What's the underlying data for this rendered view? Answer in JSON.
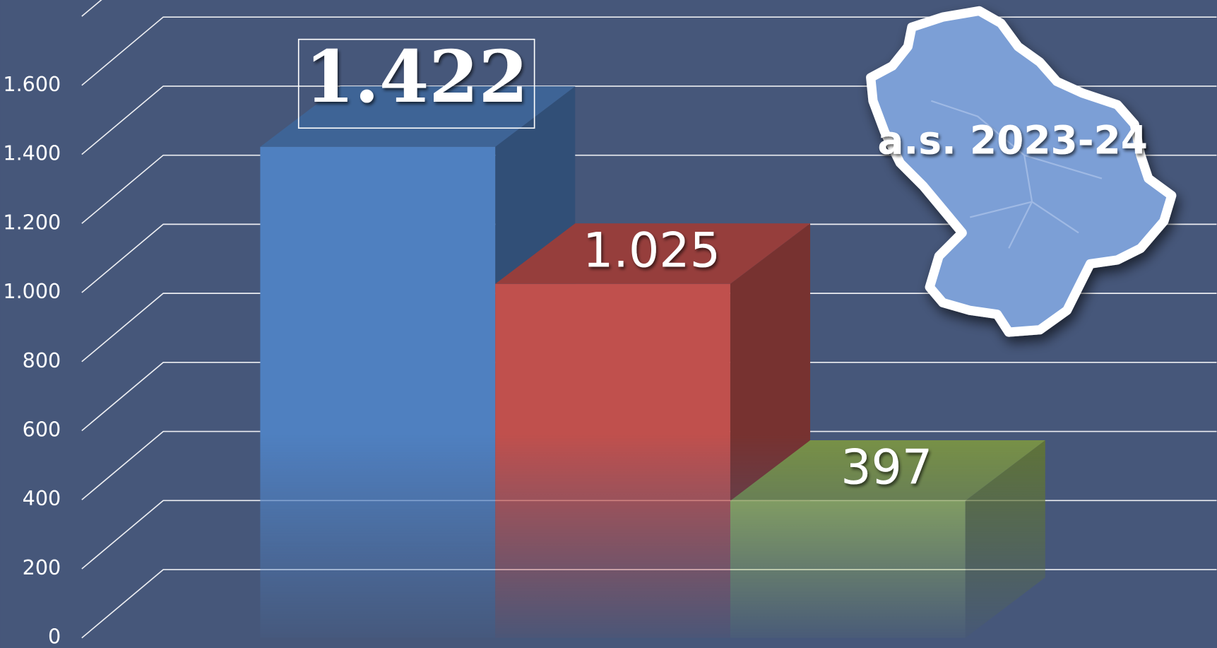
{
  "chart_data": {
    "type": "bar3d",
    "annotation": "a.s. 2023-24",
    "categories": [
      null,
      null,
      null
    ],
    "values": [
      1422,
      1025,
      397
    ],
    "value_labels": [
      "1.422",
      "1.025",
      "397"
    ],
    "colors": [
      "#4f80c0",
      "#c0504d",
      "#9bbb59"
    ],
    "ylim": [
      0,
      1800
    ],
    "yticks": [
      0,
      200,
      400,
      600,
      800,
      {
        "value": 1000,
        "label": "1.000"
      },
      {
        "value": 1200,
        "label": "1.200"
      },
      {
        "value": 1400,
        "label": "1.400"
      },
      {
        "value": 1600,
        "label": "1.600"
      }
    ],
    "grid": true
  }
}
